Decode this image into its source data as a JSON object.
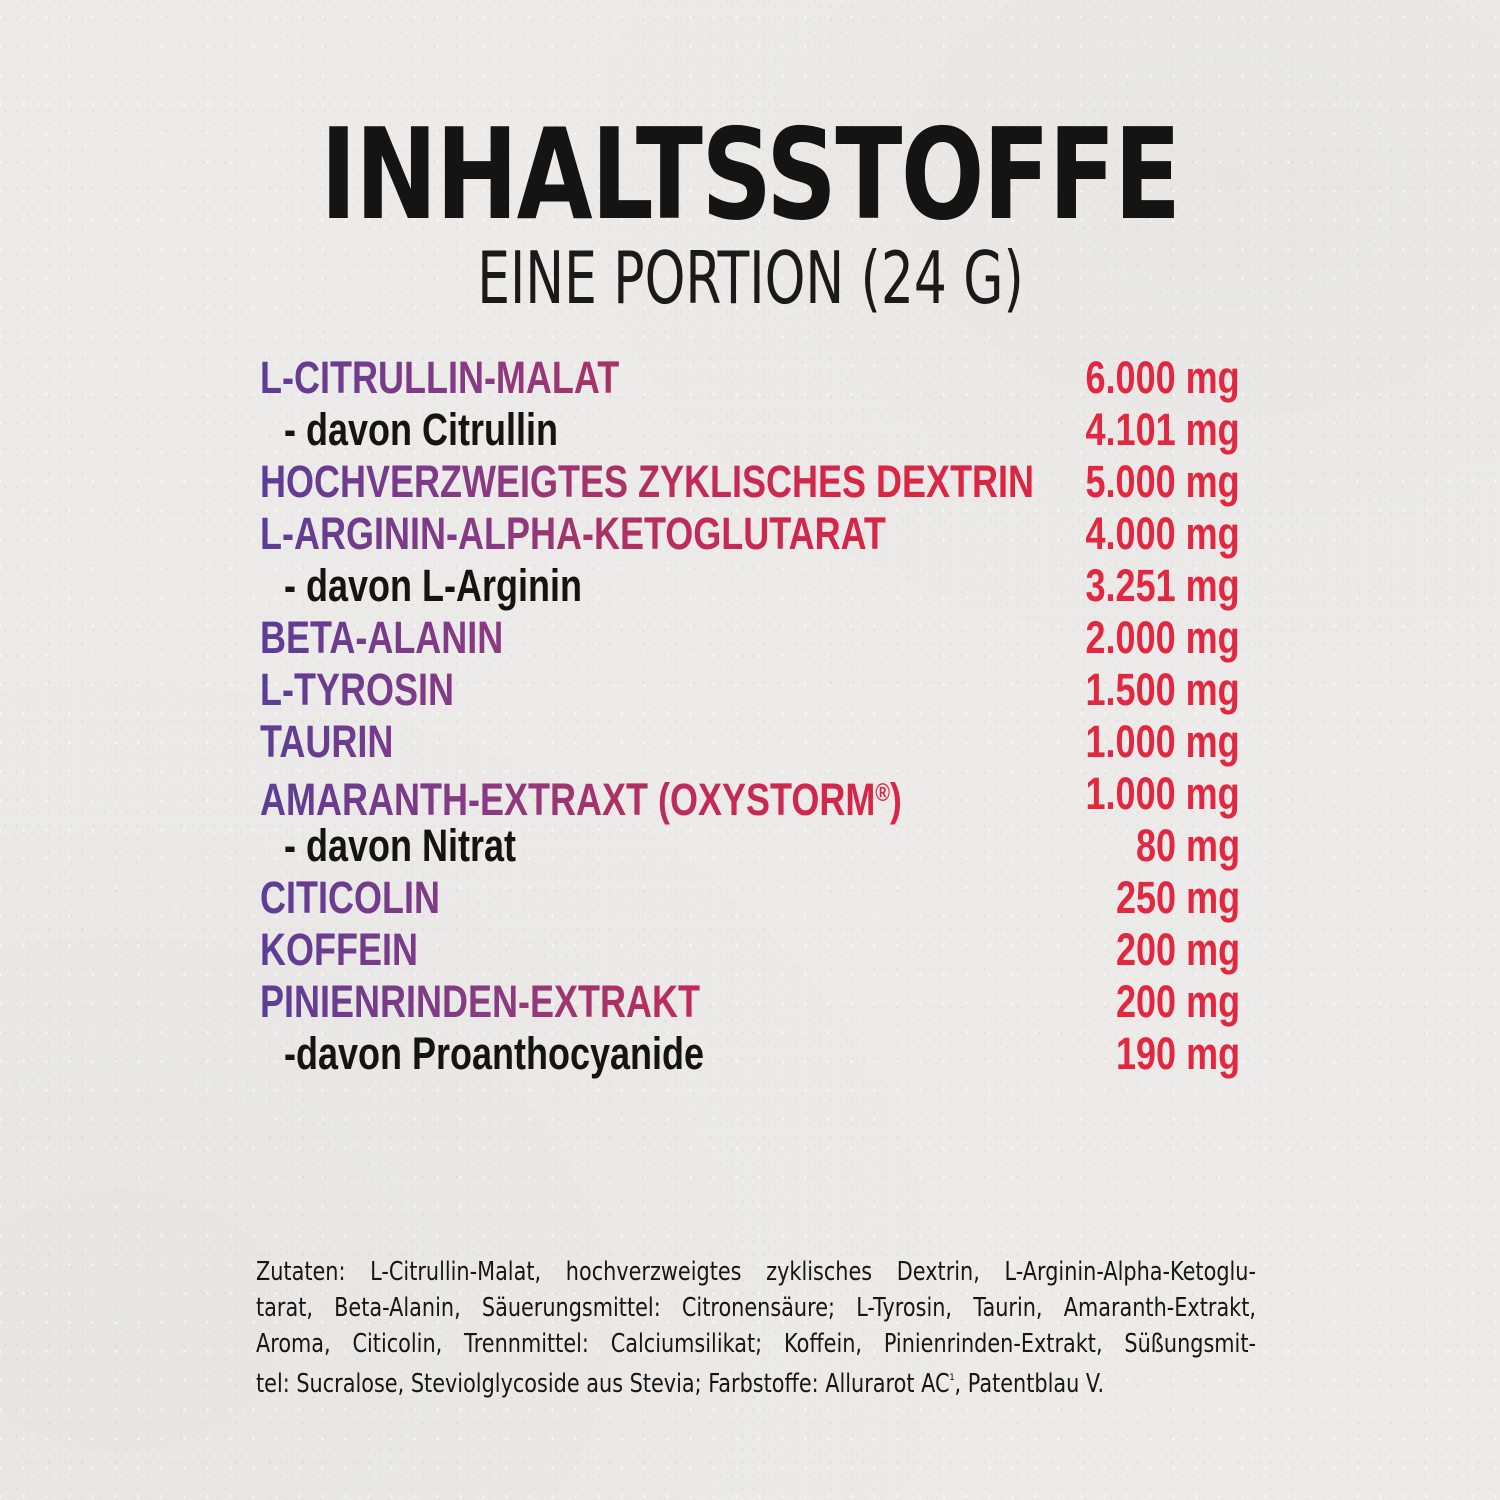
{
  "colors": {
    "paper": "#ecebe9",
    "ink": "#141414",
    "amount_red": "#e22740",
    "gradient_stops": {
      "g1": "#5c3d96",
      "g2": "#7b3b88",
      "g3": "#8c3a80",
      "g4": "#a73268",
      "g5": "#c22a58",
      "g6": "#da2545"
    }
  },
  "header": {
    "title": "INHALTSSTOFFE",
    "subtitle": "EINE PORTION (24 G)"
  },
  "ingredients": [
    {
      "name": "L-CITRULLIN-MALAT",
      "amount": "6.000 mg",
      "sub": false
    },
    {
      "name": "- davon Citrullin",
      "amount": "4.101 mg",
      "sub": true
    },
    {
      "name": "HOCHVERZWEIGTES ZYKLISCHES DEXTRIN",
      "amount": "5.000 mg",
      "sub": false
    },
    {
      "name": "L-ARGININ-ALPHA-KETOGLUTARAT",
      "amount": "4.000 mg",
      "sub": false
    },
    {
      "name": "- davon L-Arginin",
      "amount": "3.251 mg",
      "sub": true
    },
    {
      "name": "BETA-ALANIN",
      "amount": "2.000 mg",
      "sub": false
    },
    {
      "name": "L-TYROSIN",
      "amount": "1.500 mg",
      "sub": false
    },
    {
      "name": "TAURIN",
      "amount": "1.000 mg",
      "sub": false
    },
    {
      "name": "AMARANTH-EXTRAXT (OXYSTORM®)",
      "amount": "1.000 mg",
      "sub": false
    },
    {
      "name": "- davon Nitrat",
      "amount": "80 mg",
      "sub": true
    },
    {
      "name": "CITICOLIN",
      "amount": "250 mg",
      "sub": false
    },
    {
      "name": "KOFFEIN",
      "amount": "200 mg",
      "sub": false
    },
    {
      "name": "PINIENRINDEN-EXTRAKT",
      "amount": "200 mg",
      "sub": false
    },
    {
      "name": "-davon Proanthocyanide",
      "amount": "190 mg",
      "sub": true
    }
  ],
  "declaration": {
    "lines": [
      "Zutaten: L-Citrullin-Malat, hochverzweigtes zyklisches Dextrin, L-Arginin-Alpha-Ketoglu-",
      "tarat, Beta-Alanin, Säuerungsmittel: Citronensäure; L-Tyrosin, Taurin, Amaranth-Extrakt,",
      "Aroma, Citicolin, Trennmittel: Calciumsilikat; Koffein, Pinienrinden-Extrakt, Süßungsmit-",
      "tel: Sucralose, Steviolglycoside aus Stevia; Farbstoffe: Allurarot AC¹, Patentblau V."
    ]
  }
}
